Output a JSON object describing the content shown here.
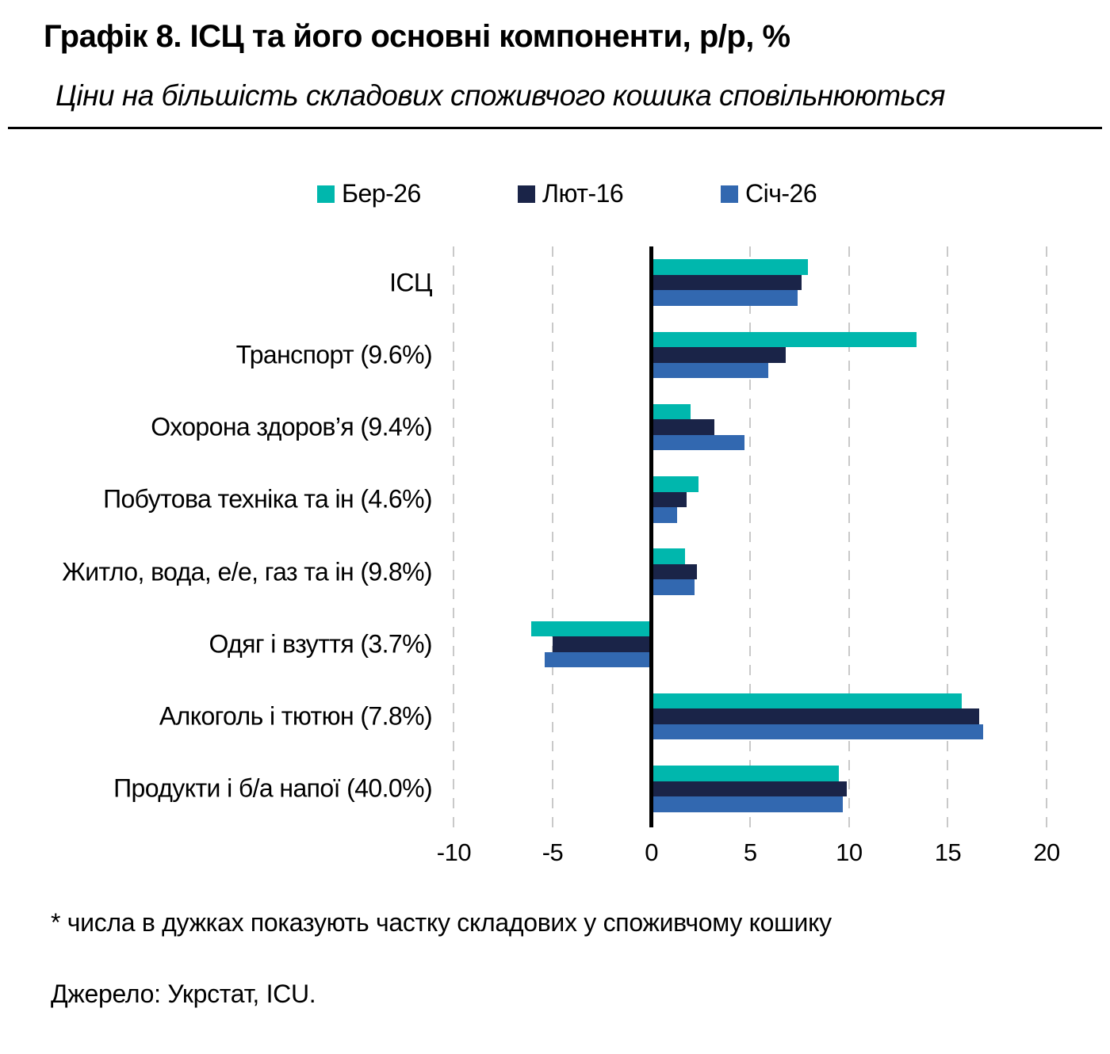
{
  "header": {
    "title": "Графік 8. ІСЦ та його основні компоненти, р/р, %",
    "subtitle": "Ціни на більшість складових споживчого кошика сповільнюються"
  },
  "chart_data": {
    "type": "bar",
    "orientation": "horizontal",
    "title": "ІСЦ та його основні компоненти, р/р, %",
    "categories": [
      "ІСЦ",
      "Транспорт (9.6%)",
      "Охорона здоров’я (9.4%)",
      "Побутова техніка та ін (4.6%)",
      "Житло, вода, е/е, газ та ін (9.8%)",
      "Одяг і взуття (3.7%)",
      "Алкоголь і тютюн (7.8%)",
      "Продукти і б/а напої (40.0%)"
    ],
    "series": [
      {
        "name": "Бер-26",
        "color": "#00B7AD",
        "values": [
          7.9,
          13.4,
          2.0,
          2.4,
          1.7,
          -6.1,
          15.7,
          9.5
        ]
      },
      {
        "name": "Лют-16",
        "color": "#1A2448",
        "values": [
          7.6,
          6.8,
          3.2,
          1.8,
          2.3,
          -5.0,
          16.6,
          9.9
        ]
      },
      {
        "name": "Січ-26",
        "color": "#3268B0",
        "values": [
          7.4,
          5.9,
          4.7,
          1.3,
          2.2,
          -5.4,
          16.8,
          9.7
        ]
      }
    ],
    "x_ticks": [
      -10,
      -5,
      0,
      5,
      10,
      15,
      20
    ],
    "x_tick_labels": [
      "-10",
      "-5",
      "0",
      "5",
      "10",
      "15",
      "20"
    ],
    "xlim": [
      -10.9,
      20.8
    ],
    "grid": "dashed-vertical",
    "gridline_color": "#C9C9C9",
    "zero_axis_color": "#000000",
    "legend_position": "top"
  },
  "footnotes": {
    "note": "* числа в дужках показують частку складових у споживчому кошику",
    "source": "Джерело: Укрстат, ICU."
  }
}
